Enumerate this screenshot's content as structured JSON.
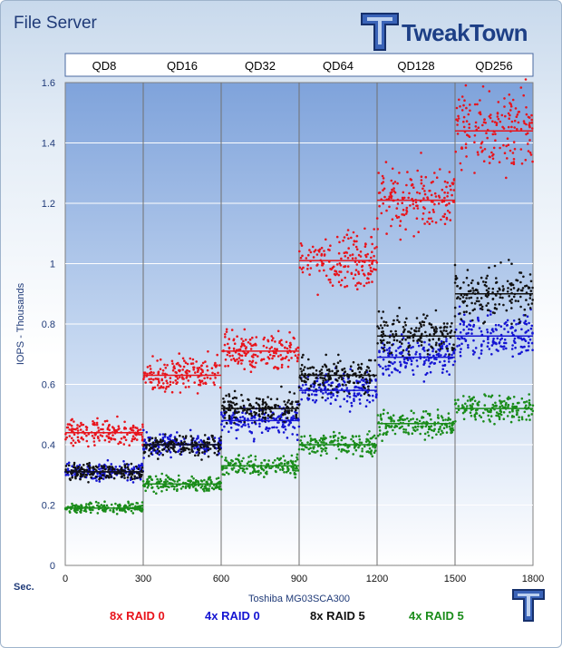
{
  "title": "File Server",
  "brand": "TweakTown",
  "sec_label": "Sec.",
  "chart_data": {
    "type": "scatter",
    "categories": [
      "QD8",
      "QD16",
      "QD32",
      "QD64",
      "QD128",
      "QD256"
    ],
    "xlabel": "Toshiba MG03SCA300",
    "ylabel": "IOPS - Thousands",
    "xlim": [
      0,
      1800
    ],
    "ylim": [
      0,
      1.6
    ],
    "xticks": [
      0,
      300,
      600,
      900,
      1200,
      1500,
      1800
    ],
    "yticks": [
      0,
      0.2,
      0.4,
      0.6,
      0.8,
      1,
      1.2,
      1.4,
      1.6
    ],
    "grid": true,
    "legend_position": "bottom",
    "series": [
      {
        "name": "8x RAID 0",
        "color": "#e8141c",
        "values": [
          0.44,
          0.63,
          0.71,
          1.01,
          1.21,
          1.44
        ]
      },
      {
        "name": "4x RAID 0",
        "color": "#1414d2",
        "values": [
          0.31,
          0.4,
          0.48,
          0.58,
          0.69,
          0.76
        ]
      },
      {
        "name": "8x RAID 5",
        "color": "#111111",
        "values": [
          0.31,
          0.4,
          0.52,
          0.63,
          0.76,
          0.9
        ]
      },
      {
        "name": "4x RAID 5",
        "color": "#1a8c1a",
        "values": [
          0.19,
          0.27,
          0.33,
          0.4,
          0.47,
          0.52
        ]
      }
    ]
  }
}
